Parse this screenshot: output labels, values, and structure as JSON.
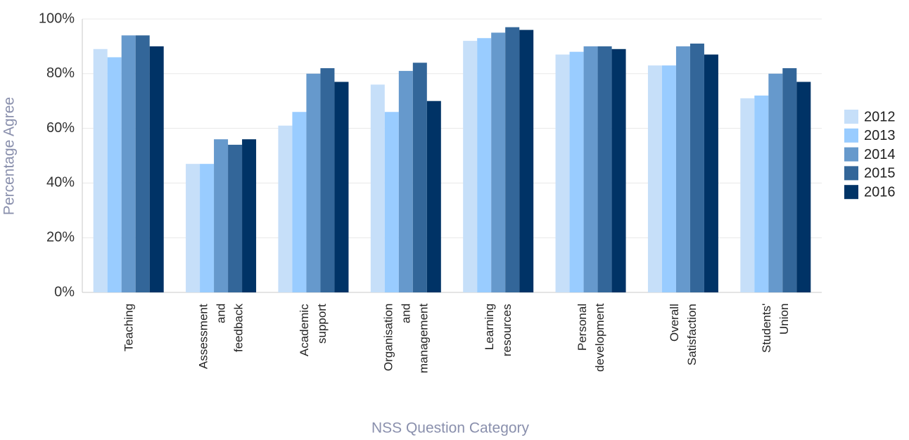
{
  "chart_data": {
    "type": "bar",
    "y_label": "Percentage Agree",
    "x_label": "NSS Question Category",
    "categories": [
      "Teaching",
      "Assessment and feedback",
      "Academic support",
      "Organisation and management",
      "Learning resources",
      "Personal development",
      "Overall Satisfaction",
      "Students' Union"
    ],
    "series": [
      {
        "name": "2012",
        "color": "#c6dff9",
        "values": [
          89,
          47,
          61,
          76,
          92,
          87,
          83,
          71
        ]
      },
      {
        "name": "2013",
        "color": "#99ccff",
        "values": [
          86,
          47,
          66,
          66,
          93,
          88,
          83,
          72
        ]
      },
      {
        "name": "2014",
        "color": "#6699cc",
        "values": [
          94,
          56,
          80,
          81,
          95,
          90,
          90,
          80
        ]
      },
      {
        "name": "2015",
        "color": "#336699",
        "values": [
          94,
          54,
          82,
          84,
          97,
          90,
          91,
          82
        ]
      },
      {
        "name": "2016",
        "color": "#003366",
        "values": [
          90,
          56,
          77,
          70,
          96,
          89,
          87,
          77
        ]
      }
    ],
    "ylim": [
      0,
      100
    ],
    "yticks": [
      {
        "value": 0,
        "label": "0%"
      },
      {
        "value": 20,
        "label": "20%"
      },
      {
        "value": 40,
        "label": "40%"
      },
      {
        "value": 60,
        "label": "60%"
      },
      {
        "value": 80,
        "label": "80%"
      },
      {
        "value": 100,
        "label": "100%"
      }
    ],
    "grid": true,
    "legend": "right"
  }
}
